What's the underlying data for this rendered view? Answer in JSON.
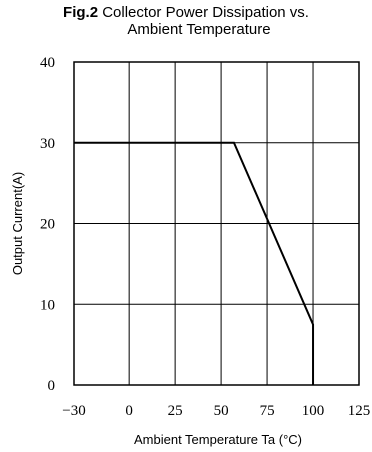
{
  "chart_data": {
    "type": "line",
    "title_prefix": "Fig.2",
    "title_line1": "Collector Power Dissipation vs.",
    "title_line2": "Ambient Temperature",
    "xlabel": "Ambient Temperature Ta (°C)",
    "ylabel": "Output Current(A)",
    "xlim": [
      -30,
      125
    ],
    "ylim": [
      0,
      40
    ],
    "x_ticks": [
      -30,
      0,
      25,
      50,
      75,
      100,
      125
    ],
    "x_tick_labels": [
      "−30",
      "0",
      "25",
      "50",
      "75",
      "100",
      "125"
    ],
    "y_ticks": [
      0,
      10,
      20,
      30,
      40
    ],
    "y_tick_labels": [
      "0",
      "10",
      "20",
      "30",
      "40"
    ],
    "grid": true,
    "legend": "none",
    "series": [
      {
        "points": [
          {
            "x": -30,
            "y": 30
          },
          {
            "x": 57,
            "y": 30
          },
          {
            "x": 100,
            "y": 7.5
          },
          {
            "x": 100,
            "y": 0
          }
        ]
      }
    ]
  }
}
